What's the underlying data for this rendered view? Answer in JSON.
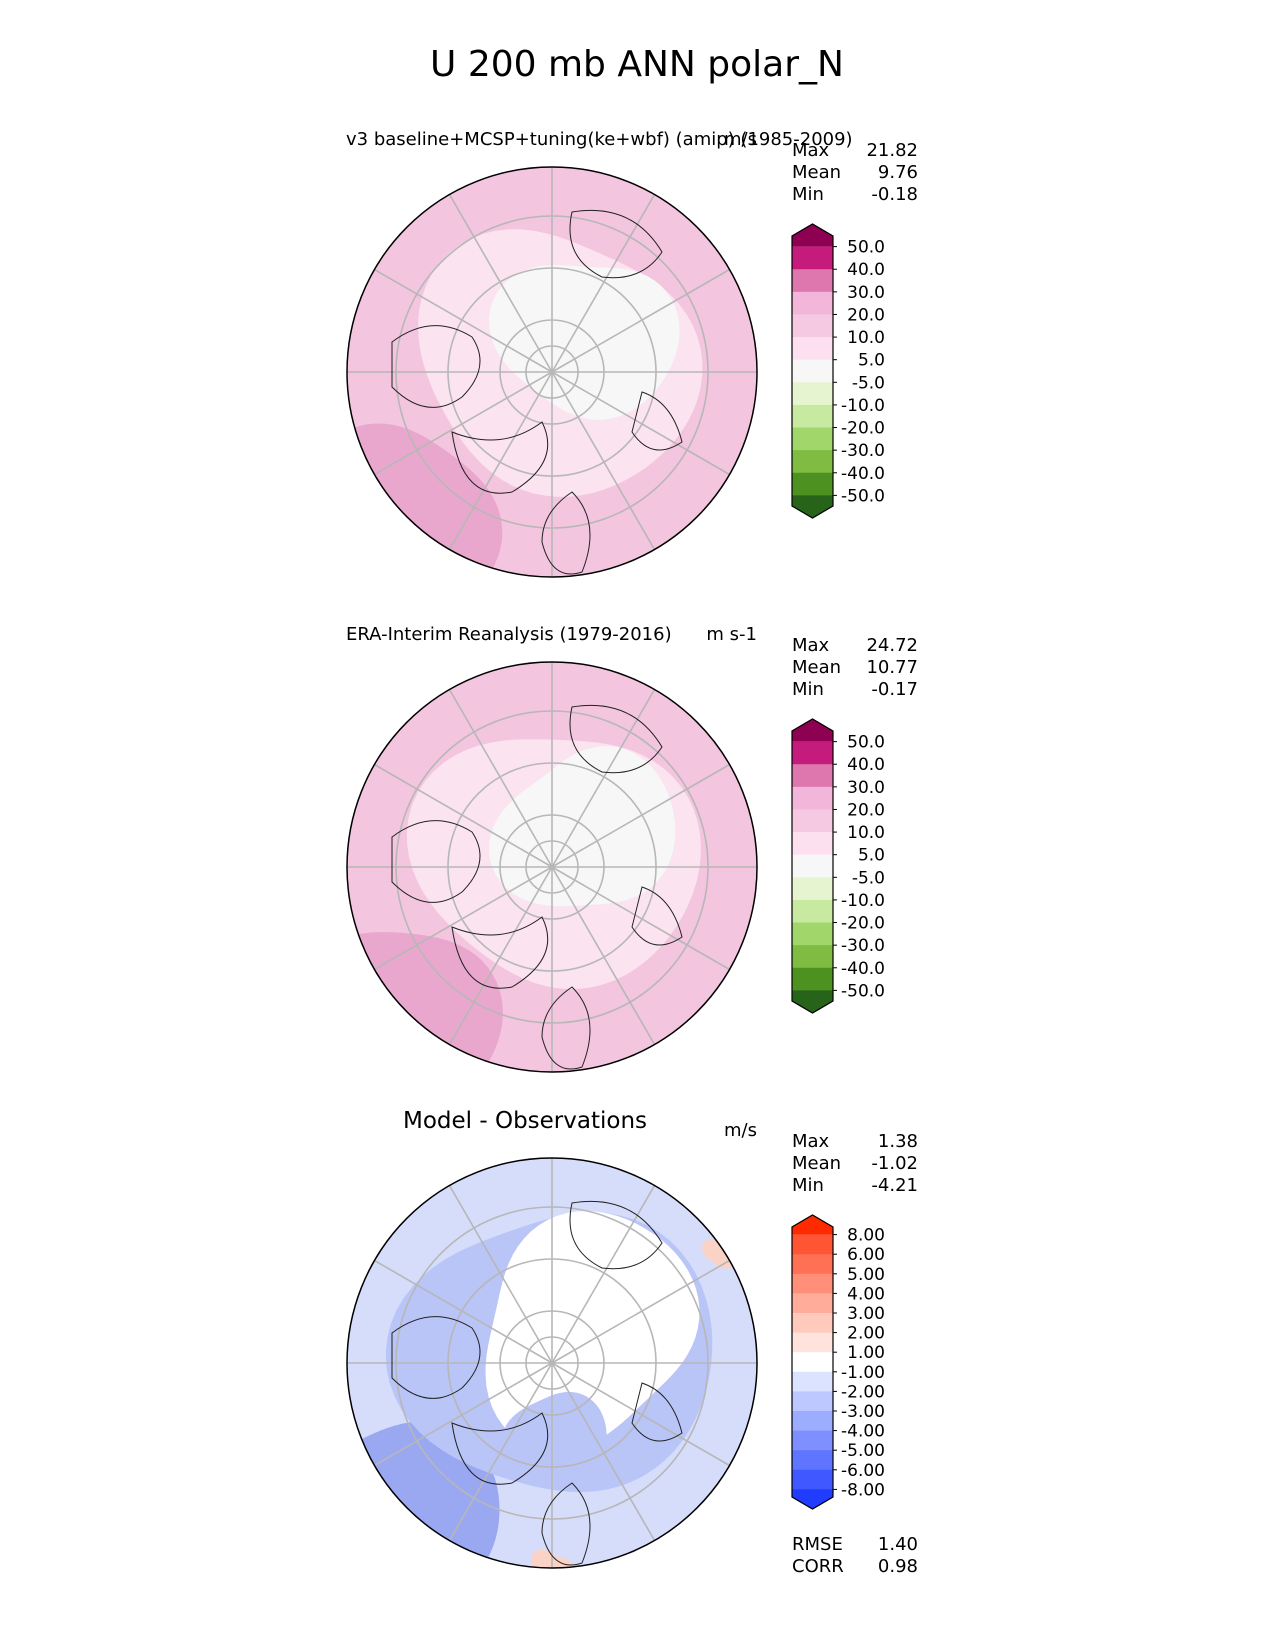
{
  "figure": {
    "title": "U 200 mb ANN polar_N"
  },
  "chart_data": [
    {
      "type": "heatmap",
      "projection": "north-polar-stereographic",
      "title": "v3 baseline+MCSP+tuning(ke+wbf) (amip) (1985-2009)",
      "units": "m/s",
      "stats": [
        {
          "label": "Max",
          "value": "21.82"
        },
        {
          "label": "Mean",
          "value": "9.76"
        },
        {
          "label": "Min",
          "value": "-0.18"
        }
      ],
      "colorbar": {
        "levels": [
          "50.0",
          "40.0",
          "30.0",
          "20.0",
          "10.0",
          "5.0",
          "-5.0",
          "-10.0",
          "-20.0",
          "-30.0",
          "-40.0",
          "-50.0"
        ],
        "colors": [
          "#8e0152",
          "#c51b7d",
          "#de77ae",
          "#f1b6da",
          "#f6c9e2",
          "#fde0ef",
          "#f7f7f7",
          "#e6f5d0",
          "#c7e9a0",
          "#a1d76a",
          "#7fbc41",
          "#4d9221",
          "#276419"
        ]
      },
      "field_colors": {
        "outer": "#f3c5df",
        "mid": "#fbe3ef",
        "core": "#f7f7f7",
        "strong": "#e8a3cb"
      }
    },
    {
      "type": "heatmap",
      "projection": "north-polar-stereographic",
      "title": "ERA-Interim Reanalysis (1979-2016)",
      "units": "m s-1",
      "stats": [
        {
          "label": "Max",
          "value": "24.72"
        },
        {
          "label": "Mean",
          "value": "10.77"
        },
        {
          "label": "Min",
          "value": "-0.17"
        }
      ],
      "colorbar": {
        "levels": [
          "50.0",
          "40.0",
          "30.0",
          "20.0",
          "10.0",
          "5.0",
          "-5.0",
          "-10.0",
          "-20.0",
          "-30.0",
          "-40.0",
          "-50.0"
        ],
        "colors": [
          "#8e0152",
          "#c51b7d",
          "#de77ae",
          "#f1b6da",
          "#f6c9e2",
          "#fde0ef",
          "#f7f7f7",
          "#e6f5d0",
          "#c7e9a0",
          "#a1d76a",
          "#7fbc41",
          "#4d9221",
          "#276419"
        ]
      },
      "field_colors": {
        "outer": "#f3c5df",
        "mid": "#fbe3ef",
        "core": "#f7f7f7",
        "strong": "#e8a3cb"
      }
    },
    {
      "type": "heatmap",
      "projection": "north-polar-stereographic",
      "title": "Model - Observations",
      "units": "m/s",
      "stats": [
        {
          "label": "Max",
          "value": "1.38"
        },
        {
          "label": "Mean",
          "value": "-1.02"
        },
        {
          "label": "Min",
          "value": "-4.21"
        }
      ],
      "colorbar": {
        "levels": [
          "8.00",
          "6.00",
          "5.00",
          "4.00",
          "3.00",
          "2.00",
          "1.00",
          "-1.00",
          "-2.00",
          "-3.00",
          "-4.00",
          "-5.00",
          "-6.00",
          "-8.00"
        ],
        "colors": [
          "#ff2a00",
          "#ff5533",
          "#ff7055",
          "#ff8f78",
          "#ffad9a",
          "#ffc9bb",
          "#ffe3dc",
          "#ffffff",
          "#dbe3ff",
          "#bcc8ff",
          "#9cacff",
          "#7e90ff",
          "#5f74ff",
          "#3f58ff",
          "#1f3cff"
        ]
      },
      "field_colors": {
        "outer": "#d6ddfb",
        "mid": "#b9c4f7",
        "core": "#ffffff",
        "strong": "#8f9ff0",
        "pos": "#fbd2c6"
      },
      "extra_stats": [
        {
          "label": "RMSE",
          "value": "1.40"
        },
        {
          "label": "CORR",
          "value": "0.98"
        }
      ]
    }
  ]
}
